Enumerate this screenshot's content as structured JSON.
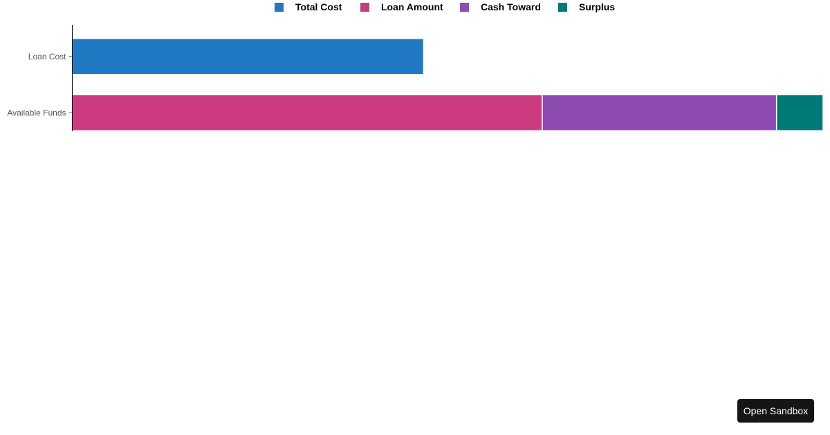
{
  "chart_data": {
    "type": "bar",
    "orientation": "horizontal",
    "stacked": true,
    "categories": [
      "Loan Cost",
      "Available Funds"
    ],
    "series": [
      {
        "name": "Total Cost",
        "color": "#1f78c1",
        "values": [
          468,
          0
        ]
      },
      {
        "name": "Loan Amount",
        "color": "#cc3a80",
        "values": [
          0,
          626
        ]
      },
      {
        "name": "Cash Toward",
        "color": "#8e4bb1",
        "values": [
          0,
          312
        ]
      },
      {
        "name": "Surplus",
        "color": "#007a78",
        "values": [
          0,
          62
        ]
      }
    ],
    "xlim": [
      0,
      1000
    ],
    "x_axis_visible": false,
    "grid": false,
    "legend": "top-center"
  },
  "button": {
    "label": "Open Sandbox"
  }
}
